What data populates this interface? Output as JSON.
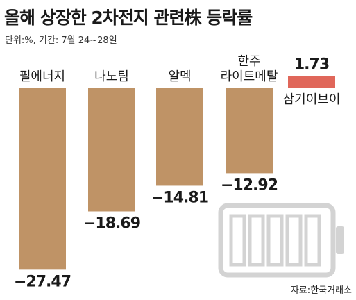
{
  "title": "올해 상장한 2차전지 관련株 등락률",
  "subtitle": "단위:%, 기간: 7월 24~28일",
  "source": "자료:한국거래소",
  "colors": {
    "negative": "#bf9366",
    "positive": "#e0675a",
    "battery": "#d3d3d3"
  },
  "icon": "battery-icon",
  "chart_data": {
    "type": "bar",
    "categories": [
      "필에너지",
      "나노팀",
      "알멕",
      "라이트메탈",
      "삼기이브이"
    ],
    "category_lines": [
      [
        "필에너지"
      ],
      [
        "나노팀"
      ],
      [
        "알멕"
      ],
      [
        "한주",
        "라이트메탈"
      ],
      [
        "삼기이브이"
      ]
    ],
    "values": [
      -27.47,
      -18.69,
      -14.81,
      -12.92,
      1.73
    ],
    "value_labels": [
      "−27.47",
      "−18.69",
      "−14.81",
      "−12.92",
      "1.73"
    ]
  }
}
